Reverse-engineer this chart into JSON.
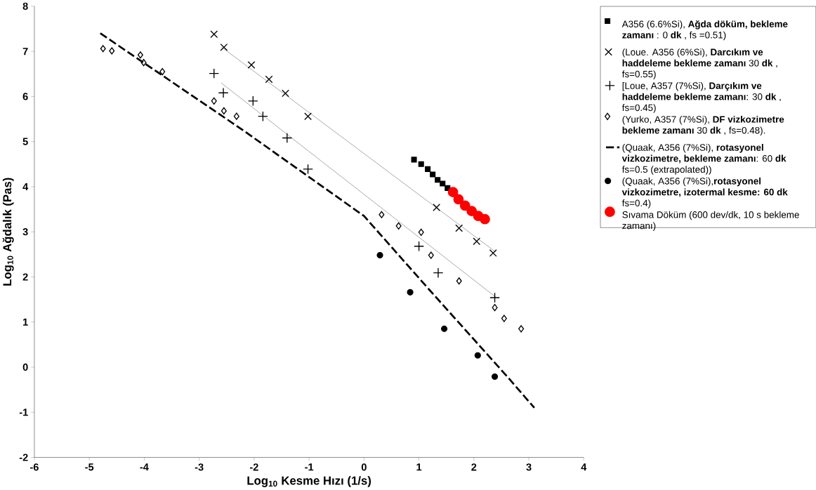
{
  "chart_data": {
    "type": "scatter",
    "xlabel": "Log$_{10}$ **Kesme Hızı** (1/s)",
    "ylabel": "Log$_{10}$ **Ağdalık** (Pas)",
    "xlim": [
      -6,
      4
    ],
    "ylim": [
      -2,
      8
    ],
    "xticks": [
      -6,
      -5,
      -4,
      -3,
      -2,
      -1,
      0,
      1,
      2,
      3,
      4
    ],
    "yticks": [
      -2,
      -1,
      0,
      1,
      2,
      3,
      4,
      5,
      6,
      7,
      8
    ],
    "grid": false,
    "legend": "right",
    "series": [
      {
        "name": "A356 (6.6%Si), **Ağda döküm, bekleme zamanı** : 0 **dk** , fs =0.51)",
        "marker": "square",
        "color": "#000000",
        "x": [
          0.91,
          1.04,
          1.16,
          1.25,
          1.34,
          1.43,
          1.52
        ],
        "values": [
          4.6,
          4.5,
          4.39,
          4.27,
          4.15,
          4.07,
          3.97
        ]
      },
      {
        "name": "(Loue. A356 (6%Si), **Darcıkım ve haddeleme bekleme zamanı** 30 **dk** , fs=0.55)",
        "marker": "cross",
        "color": "#000000",
        "x": [
          -2.73,
          -2.55,
          -2.05,
          -1.73,
          -1.43,
          -1.02,
          1.32,
          1.73,
          2.05,
          2.35
        ],
        "values": [
          7.38,
          7.09,
          6.7,
          6.38,
          6.07,
          5.56,
          3.54,
          3.08,
          2.79,
          2.53
        ]
      },
      {
        "name": "[Loue, A357 (7%Si), **Darçıkım ve haddeleme bekleme zamanı**: 30 **dk** , fs=0.45)",
        "marker": "plus",
        "color": "#000000",
        "x": [
          -2.73,
          -2.56,
          -2.02,
          -1.84,
          -1.4,
          -1.02,
          1.0,
          1.35,
          2.38
        ],
        "values": [
          6.51,
          6.08,
          5.9,
          5.56,
          5.08,
          4.39,
          2.68,
          2.09,
          1.54
        ]
      },
      {
        "name": "(Yurko, A357 (7%Si), **DF vizkozimetre bekleme zamanı** 30 **dk** , fs=0.48).",
        "marker": "diamond",
        "color": "#000000",
        "x": [
          -4.75,
          -4.59,
          -4.07,
          -4.01,
          -3.67,
          -2.73,
          -2.55,
          -2.32,
          0.32,
          0.63,
          1.04,
          1.22,
          1.73,
          2.38,
          2.55,
          2.86
        ],
        "values": [
          7.06,
          7.01,
          6.92,
          6.75,
          6.55,
          5.9,
          5.68,
          5.56,
          3.38,
          3.13,
          2.99,
          2.48,
          1.91,
          1.32,
          1.08,
          0.85
        ]
      },
      {
        "name": "(Quaak, A356 (7%Si), **rotasyonel vizkozimetre, bekleme zamanı**: 60 **dk** fs=0.5 (extrapolated))",
        "type": "line",
        "line_style": "dashed",
        "color": "#000000",
        "x": [
          -4.8,
          -2.2,
          0.0,
          1.2,
          2.6,
          3.1
        ],
        "values": [
          7.4,
          5.25,
          3.35,
          1.7,
          -0.2,
          -0.9
        ]
      },
      {
        "name": "(Quaak, A356 (7%Si),**rotasyonel vizkozimetre, izotermal kesme: 60 dk** fs=0.4)",
        "marker": "circle",
        "color": "#000000",
        "x": [
          0.29,
          0.84,
          1.46,
          2.07,
          2.38
        ],
        "values": [
          2.48,
          1.66,
          0.85,
          0.26,
          -0.21
        ]
      },
      {
        "name": "Sıvama Döküm (600 dev/dk, 10 s bekleme zamanı)",
        "marker": "circle",
        "color": "#ff0000",
        "x": [
          1.62,
          1.72,
          1.84,
          1.96,
          2.08,
          2.2
        ],
        "values": [
          3.88,
          3.72,
          3.58,
          3.46,
          3.35,
          3.28
        ]
      },
      {
        "type": "line",
        "line_style": "solid",
        "color": "#808080",
        "x": [
          -2.6,
          2.4
        ],
        "values": [
          7.1,
          2.55
        ]
      },
      {
        "type": "line",
        "line_style": "solid",
        "color": "#808080",
        "x": [
          -2.6,
          2.4
        ],
        "values": [
          6.3,
          1.55
        ]
      }
    ]
  }
}
